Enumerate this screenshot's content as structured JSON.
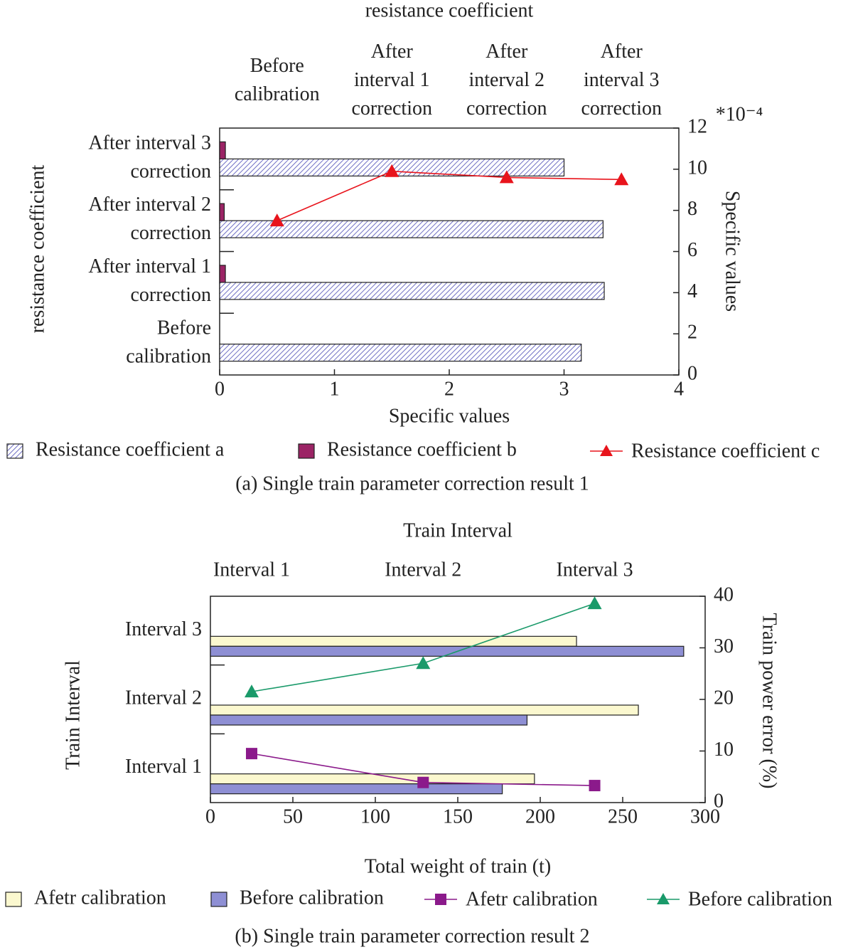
{
  "chart_data": [
    {
      "type": "bar",
      "x2_label": "resistance coefficient",
      "y_label": "resistance coefficient",
      "x_label": "Specific values",
      "y2_label": "Specific values",
      "y2_unit": "*10⁻⁴",
      "caption": "(a) Single train parameter correction result 1",
      "categories": [
        "Before\ncalibration",
        "After interval 1\ncorrection",
        "After interval 2\ncorrection",
        "After interval 3\ncorrection"
      ],
      "x2_categories": [
        "Before\ncalibration",
        "After\ninterval 1\ncorrection",
        "After\ninterval 2\ncorrection",
        "After\ninterval 3\ncorrection"
      ],
      "xlim": [
        0,
        4
      ],
      "xticks": [
        0,
        1,
        2,
        3,
        4
      ],
      "y2lim": [
        0,
        12
      ],
      "y2ticks": [
        0,
        2,
        4,
        6,
        8,
        10,
        12
      ],
      "series": [
        {
          "name": "Resistance coefficient a",
          "type": "bar",
          "hatch": true,
          "color": "#6f6fc4",
          "values": [
            3.15,
            3.35,
            3.34,
            3.0
          ]
        },
        {
          "name": "Resistance coefficient b",
          "type": "bar",
          "color": "#9b2465",
          "values": [
            0,
            0.05,
            0.04,
            0.05
          ]
        },
        {
          "name": "Resistance coefficient c",
          "type": "line",
          "marker": "triangle",
          "axis": "y2",
          "color": "#e8141c",
          "x": [
            0.5,
            1.5,
            2.5,
            3.5
          ],
          "values": [
            7.5,
            9.9,
            9.6,
            9.5
          ]
        }
      ]
    },
    {
      "type": "bar",
      "x2_label": "Train Interval",
      "y_label": "Train Interval",
      "x_label": "Total weight of train (t)",
      "y2_label": "Train power error (%)",
      "caption": "(b) Single train parameter correction result 2",
      "categories": [
        "Interval 1",
        "Interval 2",
        "Interval 3"
      ],
      "x2_categories": [
        "Interval   1",
        "Interval   2",
        "Interval   3"
      ],
      "xlim": [
        0,
        300
      ],
      "xticks": [
        0,
        50,
        100,
        150,
        200,
        250,
        300
      ],
      "y2lim": [
        0,
        40
      ],
      "y2ticks": [
        0,
        10,
        20,
        30,
        40
      ],
      "series": [
        {
          "name": "Afetr calibration",
          "type": "bar",
          "color": "#fbf8cf",
          "values": [
            196.5,
            259.5,
            222
          ]
        },
        {
          "name": "Before calibration",
          "type": "bar",
          "color": "#8e8fd4",
          "values": [
            177,
            192,
            287
          ]
        },
        {
          "name": "Afetr calibration",
          "type": "line",
          "marker": "square",
          "axis": "y2",
          "color": "#8b1a8b",
          "x": [
            25,
            129,
            233
          ],
          "values": [
            9.5,
            3.9,
            3.3
          ]
        },
        {
          "name": "Before calibration",
          "type": "line",
          "marker": "triangle",
          "axis": "y2",
          "color": "#1a9a6a",
          "x": [
            25,
            129,
            233
          ],
          "values": [
            21.5,
            27,
            38.6
          ]
        }
      ]
    }
  ]
}
